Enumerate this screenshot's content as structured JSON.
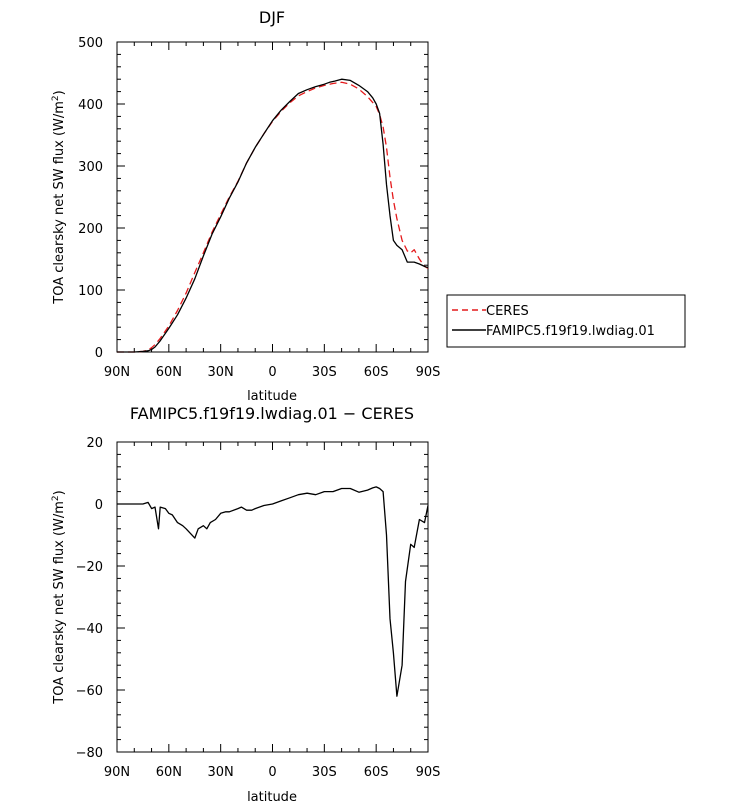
{
  "chart_data": [
    {
      "type": "line",
      "title": "DJF",
      "xlabel": "latitude",
      "ylabel_main": "TOA clearsky net SW flux (W/m",
      "ylabel_sup": "2",
      "ylabel_close": ")",
      "xlim": [
        90,
        -90
      ],
      "ylim": [
        0,
        500
      ],
      "xtick_values": [
        90,
        60,
        30,
        0,
        -30,
        -60,
        -90
      ],
      "xtick_labels": [
        "90N",
        "60N",
        "30N",
        "0",
        "30S",
        "60S",
        "90S"
      ],
      "ytick_values": [
        0,
        100,
        200,
        300,
        400,
        500
      ],
      "ytick_labels": [
        "0",
        "100",
        "200",
        "300",
        "400",
        "500"
      ],
      "legend": {
        "placement": "outside-right",
        "entries": [
          "CERES",
          "FAMIPC5.f19f19.lwdiag.01"
        ]
      },
      "series": [
        {
          "name": "CERES",
          "color": "#e41a1c",
          "dash": "dashed",
          "x": [
            90,
            85,
            80,
            75,
            72,
            70,
            68,
            65,
            60,
            55,
            50,
            45,
            40,
            35,
            30,
            25,
            20,
            15,
            10,
            5,
            0,
            -5,
            -10,
            -15,
            -20,
            -25,
            -30,
            -35,
            -40,
            -45,
            -50,
            -55,
            -60,
            -62,
            -64,
            -66,
            -68,
            -70,
            -72,
            -75,
            -78,
            -80,
            -82,
            -85,
            -88,
            -90
          ],
          "y": [
            0,
            0,
            0,
            1,
            3,
            7,
            12,
            22,
            42,
            67,
            95,
            128,
            160,
            193,
            222,
            250,
            275,
            305,
            330,
            352,
            372,
            388,
            402,
            413,
            420,
            426,
            430,
            433,
            435,
            432,
            424,
            412,
            396,
            383,
            363,
            330,
            282,
            245,
            215,
            180,
            163,
            160,
            165,
            150,
            138,
            135
          ]
        },
        {
          "name": "FAMIPC5.f19f19.lwdiag.01",
          "color": "#000000",
          "dash": "solid",
          "x": [
            90,
            85,
            80,
            75,
            72,
            70,
            68,
            65,
            60,
            55,
            50,
            45,
            40,
            35,
            30,
            25,
            20,
            15,
            10,
            5,
            0,
            -5,
            -10,
            -15,
            -20,
            -25,
            -30,
            -33,
            -36,
            -40,
            -45,
            -50,
            -55,
            -58,
            -60,
            -62,
            -64,
            -66,
            -68,
            -70,
            -72,
            -75,
            -78,
            -80,
            -82,
            -85,
            -88,
            -90
          ],
          "y": [
            0,
            0,
            0,
            1,
            2,
            4,
            8,
            18,
            38,
            60,
            87,
            118,
            155,
            190,
            218,
            248,
            274,
            305,
            330,
            352,
            373,
            390,
            404,
            417,
            423,
            428,
            432,
            435,
            437,
            440,
            438,
            430,
            420,
            410,
            400,
            385,
            335,
            270,
            220,
            180,
            172,
            165,
            145,
            145,
            145,
            142,
            138,
            136
          ]
        }
      ]
    },
    {
      "type": "line",
      "title": "FAMIPC5.f19f19.lwdiag.01 − CERES",
      "xlabel": "latitude",
      "ylabel_main": "TOA clearsky net SW flux (W/m",
      "ylabel_sup": "2",
      "ylabel_close": ")",
      "xlim": [
        90,
        -90
      ],
      "ylim": [
        -80,
        20
      ],
      "xtick_values": [
        90,
        60,
        30,
        0,
        -30,
        -60,
        -90
      ],
      "xtick_labels": [
        "90N",
        "60N",
        "30N",
        "0",
        "30S",
        "60S",
        "90S"
      ],
      "ytick_values": [
        -80,
        -60,
        -40,
        -20,
        0,
        20
      ],
      "ytick_labels": [
        "−80",
        "−60",
        "−40",
        "−20",
        "0",
        "20"
      ],
      "series": [
        {
          "color": "#000000",
          "dash": "solid",
          "x": [
            90,
            85,
            80,
            75,
            72,
            70,
            68,
            66,
            65,
            62,
            60,
            58,
            55,
            52,
            50,
            45,
            43,
            40,
            38,
            36,
            33,
            30,
            27,
            25,
            20,
            18,
            15,
            12,
            10,
            5,
            0,
            -5,
            -10,
            -15,
            -20,
            -25,
            -30,
            -35,
            -40,
            -45,
            -50,
            -55,
            -58,
            -60,
            -62,
            -64,
            -66,
            -68,
            -70,
            -72,
            -75,
            -77,
            -80,
            -82,
            -85,
            -88,
            -90
          ],
          "y": [
            0,
            0,
            0,
            0,
            0.5,
            -1.5,
            -1,
            -8,
            -1,
            -1.5,
            -3,
            -3.5,
            -6,
            -7,
            -8,
            -11,
            -8,
            -7,
            -8,
            -6,
            -5,
            -3,
            -2.5,
            -2.5,
            -1.5,
            -1,
            -2,
            -2,
            -1.5,
            -0.5,
            0,
            1,
            2,
            3,
            3.5,
            3,
            4,
            4,
            5,
            5,
            3.8,
            4.5,
            5.2,
            5.5,
            5,
            4,
            -10,
            -37,
            -48,
            -62,
            -52,
            -25,
            -13,
            -14,
            -5,
            -6,
            -0.5
          ]
        }
      ]
    }
  ]
}
